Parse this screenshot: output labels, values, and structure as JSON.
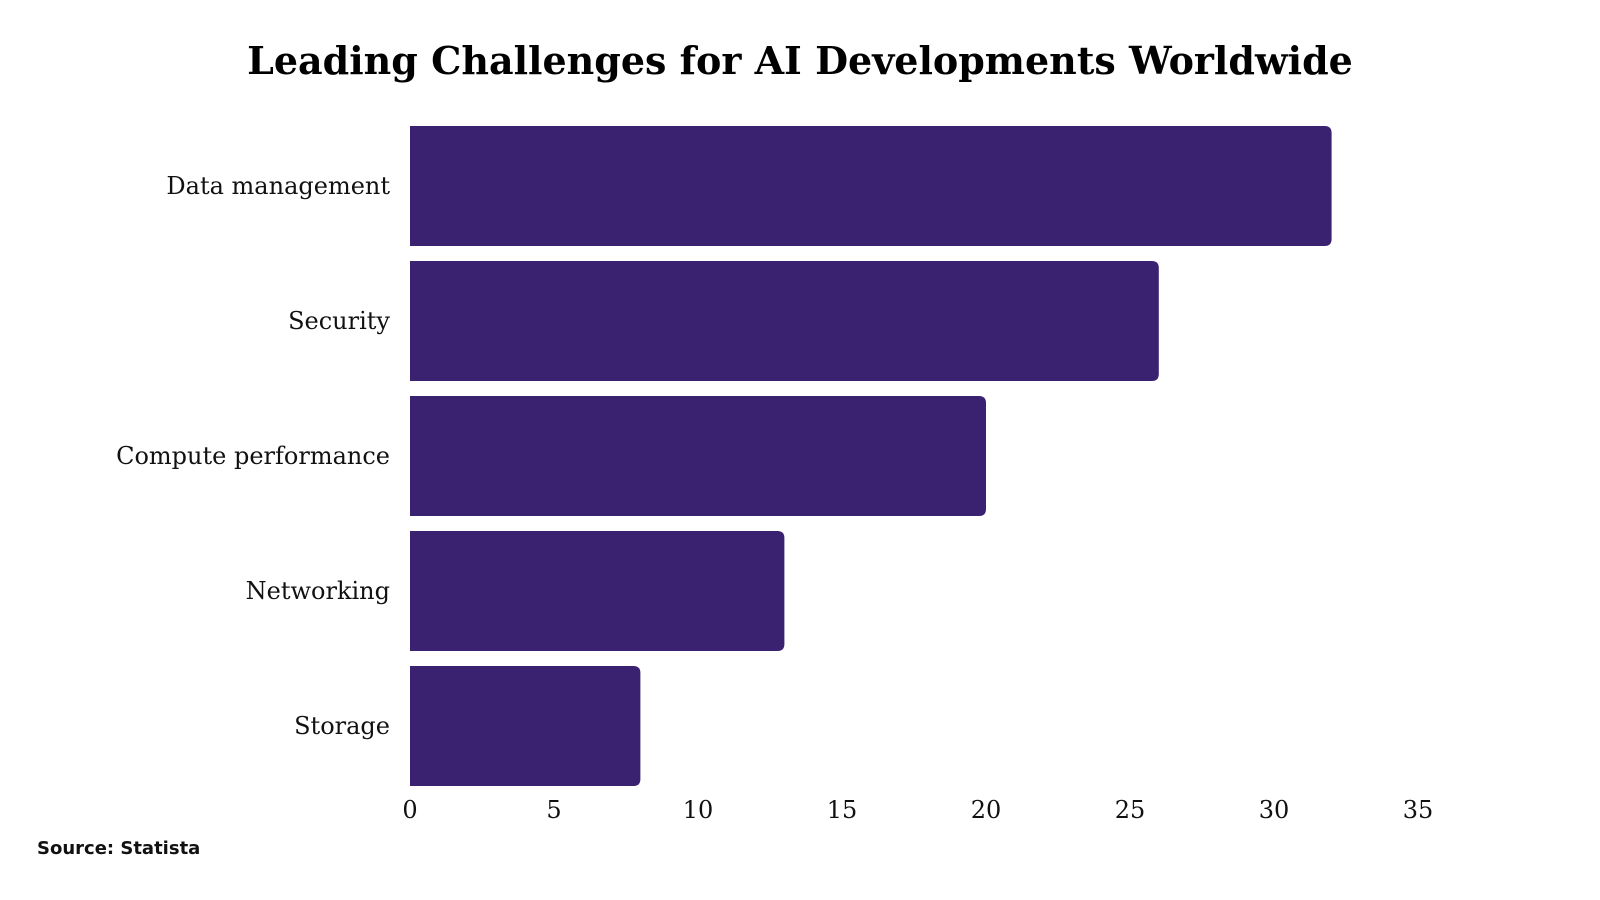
{
  "chart_data": {
    "type": "bar",
    "orientation": "horizontal",
    "title": "Leading Challenges for AI Developments Worldwide",
    "categories": [
      "Data management",
      "Security",
      "Compute performance",
      "Networking",
      "Storage"
    ],
    "values": [
      32,
      26,
      20,
      13,
      8
    ],
    "xlim": [
      0,
      35
    ],
    "xticks": [
      "0",
      "5",
      "10",
      "15",
      "20",
      "25",
      "30",
      "35"
    ],
    "xlabel": "",
    "ylabel": "",
    "grid": false,
    "legend": "none",
    "bar_color": "#3b2270"
  },
  "source": "Source: Statista"
}
